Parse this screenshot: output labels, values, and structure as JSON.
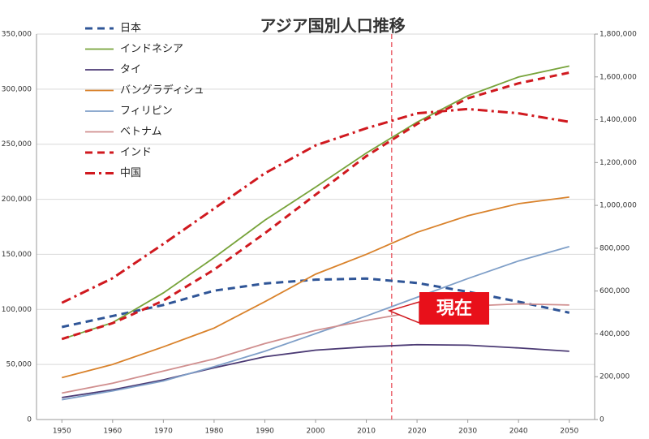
{
  "chart_data": {
    "type": "line",
    "title": "アジア国別人口推移",
    "x": [
      1950,
      1960,
      1970,
      1980,
      1990,
      2000,
      2010,
      2020,
      2030,
      2040,
      2050
    ],
    "xlim": [
      1945,
      2055
    ],
    "xticks": [
      1950,
      1960,
      1970,
      1980,
      1990,
      2000,
      2010,
      2020,
      2030,
      2040,
      2050
    ],
    "ylim": [
      0,
      350000
    ],
    "yticks": [
      0,
      {
        "value": 50000,
        "label": "50,000"
      },
      {
        "value": 100000,
        "label": "100,000"
      },
      {
        "value": 150000,
        "label": "150,000"
      },
      {
        "value": 200000,
        "label": "200,000"
      },
      {
        "value": 250000,
        "label": "250,000"
      },
      {
        "value": 300000,
        "label": "300,000"
      },
      {
        "value": 350000,
        "label": "350,000"
      }
    ],
    "y2lim": [
      0,
      1800000
    ],
    "y2ticks": [
      0,
      {
        "value": 200000,
        "label": "200,000"
      },
      {
        "value": 400000,
        "label": "400,000"
      },
      {
        "value": 600000,
        "label": "600,000"
      },
      {
        "value": 800000,
        "label": "800,000"
      },
      {
        "value": 1000000,
        "label": "1,000,000"
      },
      {
        "value": 1200000,
        "label": "1,200,000"
      },
      {
        "value": 1400000,
        "label": "1,400,000"
      },
      {
        "value": 1600000,
        "label": "1,600,000"
      },
      {
        "value": 1800000,
        "label": "1,800,000"
      }
    ],
    "grid": true,
    "legend": "upper left",
    "series": [
      {
        "name": "日本",
        "color": "#2f5597",
        "dash": "dash",
        "values": [
          84000,
          94000,
          104000,
          117000,
          123500,
          127000,
          128000,
          124000,
          116000,
          107000,
          97000
        ]
      },
      {
        "name": "インドネシア",
        "color": "#77a33a",
        "dash": "solid",
        "values": [
          73000,
          88000,
          115000,
          147000,
          181000,
          211000,
          242000,
          270000,
          294000,
          311000,
          321000
        ]
      },
      {
        "name": "タイ",
        "color": "#4b3a74",
        "dash": "solid",
        "values": [
          20000,
          27000,
          36000,
          47000,
          57000,
          63000,
          66000,
          68000,
          67500,
          65000,
          62000
        ]
      },
      {
        "name": "バングラディシュ",
        "color": "#d9822b",
        "dash": "solid",
        "values": [
          38000,
          50000,
          66000,
          83000,
          107000,
          132000,
          150000,
          170000,
          185000,
          196000,
          202000
        ]
      },
      {
        "name": "フィリピン",
        "color": "#7f9fc8",
        "dash": "solid",
        "values": [
          18000,
          26000,
          35000,
          48000,
          62000,
          78000,
          94000,
          111000,
          128000,
          144000,
          157000
        ]
      },
      {
        "name": "ベトナム",
        "color": "#d08f8f",
        "dash": "solid",
        "values": [
          24000,
          33000,
          44000,
          55000,
          69000,
          81000,
          90000,
          98000,
          103000,
          105000,
          104000
        ]
      },
      {
        "name": "インド",
        "color": "#d0191f",
        "dash": "dash",
        "axis": "y2",
        "values": [
          376000,
          450000,
          555000,
          700000,
          870000,
          1050000,
          1230000,
          1380000,
          1500000,
          1570000,
          1620000
        ]
      },
      {
        "name": "中国",
        "color": "#d0191f",
        "dash": "dashdot",
        "axis": "y2",
        "values": [
          545000,
          660000,
          820000,
          985000,
          1150000,
          1280000,
          1360000,
          1430000,
          1450000,
          1430000,
          1390000
        ]
      }
    ],
    "now_x": 2015,
    "annotation": "現在"
  }
}
